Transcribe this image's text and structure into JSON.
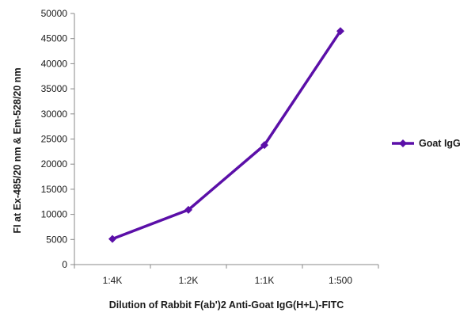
{
  "chart_data": {
    "type": "line",
    "categories": [
      "1:4K",
      "1:2K",
      "1:1K",
      "1:500"
    ],
    "series": [
      {
        "name": "Goat IgG",
        "values": [
          5100,
          10900,
          23800,
          46500
        ],
        "color": "#5b0fa8"
      }
    ],
    "title": "",
    "xlabel": "Dilution of Rabbit F(ab')2 Anti-Goat IgG(H+L)-FITC",
    "ylabel": "FI at Ex-485/20 nm & Em-528/20 nm",
    "ylim": [
      0,
      50000
    ],
    "ytick_step": 5000,
    "grid": false,
    "legend_position": "right",
    "axis_color": "#888888"
  }
}
